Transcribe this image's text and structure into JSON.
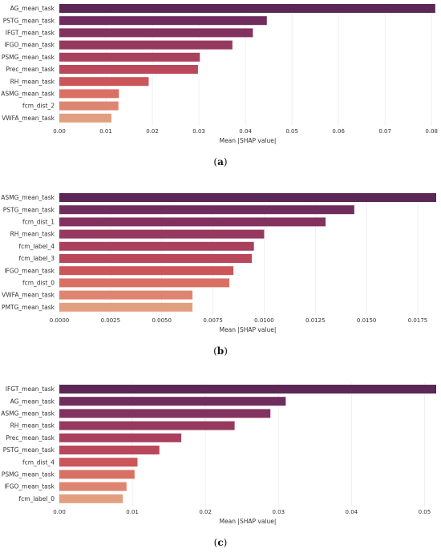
{
  "colors": [
    "#5a2756",
    "#6f2d5d",
    "#83325f",
    "#96395f",
    "#a8405e",
    "#b9485c",
    "#cb5559",
    "#d97064",
    "#dd8571",
    "#e29f80"
  ],
  "chart_data": [
    {
      "type": "bar",
      "orientation": "horizontal",
      "panel_label": "a",
      "xlabel": "Mean |SHAP value|",
      "xlim": [
        0,
        0.081
      ],
      "xticks": [
        "0.00",
        "0.01",
        "0.02",
        "0.03",
        "0.04",
        "0.05",
        "0.06",
        "0.07",
        "0.08"
      ],
      "grid": true,
      "categories": [
        "AG_mean_task",
        "PSTG_mean_task",
        "IFGT_mean_task",
        "IFGO_mean_task",
        "PSMG_mean_task",
        "Prec_mean_task",
        "RH_mean_task",
        "ASMG_mean_task",
        "fcm_dist_2",
        "VWFA_mean_task"
      ],
      "values": [
        0.0808,
        0.0446,
        0.0416,
        0.0372,
        0.0302,
        0.0298,
        0.0192,
        0.0128,
        0.0127,
        0.0112
      ]
    },
    {
      "type": "bar",
      "orientation": "horizontal",
      "panel_label": "b",
      "xlabel": "Mean |SHAP value|",
      "xlim": [
        0,
        0.0184
      ],
      "xticks": [
        "0.0000",
        "0.0025",
        "0.0050",
        "0.0075",
        "0.0100",
        "0.0125",
        "0.0150",
        "0.0175"
      ],
      "grid": true,
      "categories": [
        "ASMG_mean_task",
        "PSTG_mean_task",
        "fcm_dist_1",
        "RH_mean_task",
        "fcm_label_4",
        "fcm_label_3",
        "IFGO_mean_task",
        "fcm_dist_0",
        "VWFA_mean_task",
        "PMTG_mean_task"
      ],
      "values": [
        0.0184,
        0.0144,
        0.013,
        0.01,
        0.0095,
        0.0094,
        0.0085,
        0.0083,
        0.0065,
        0.0065
      ]
    },
    {
      "type": "bar",
      "orientation": "horizontal",
      "panel_label": "c",
      "xlabel": "Mean |SHAP value|",
      "xlim": [
        0,
        0.0516
      ],
      "xticks": [
        "0.00",
        "0.01",
        "0.02",
        "0.03",
        "0.04",
        "0.05"
      ],
      "grid": true,
      "categories": [
        "IFGT_mean_task",
        "AG_mean_task",
        "ASMG_mean_task",
        "RH_mean_task",
        "Prec_mean_task",
        "PSTG_mean_task",
        "fcm_dist_4",
        "PSMG_mean_task",
        "IFGO_mean_task",
        "fcm_label_0"
      ],
      "values": [
        0.0516,
        0.031,
        0.0289,
        0.024,
        0.0167,
        0.0137,
        0.0107,
        0.0103,
        0.0092,
        0.0087
      ]
    }
  ]
}
